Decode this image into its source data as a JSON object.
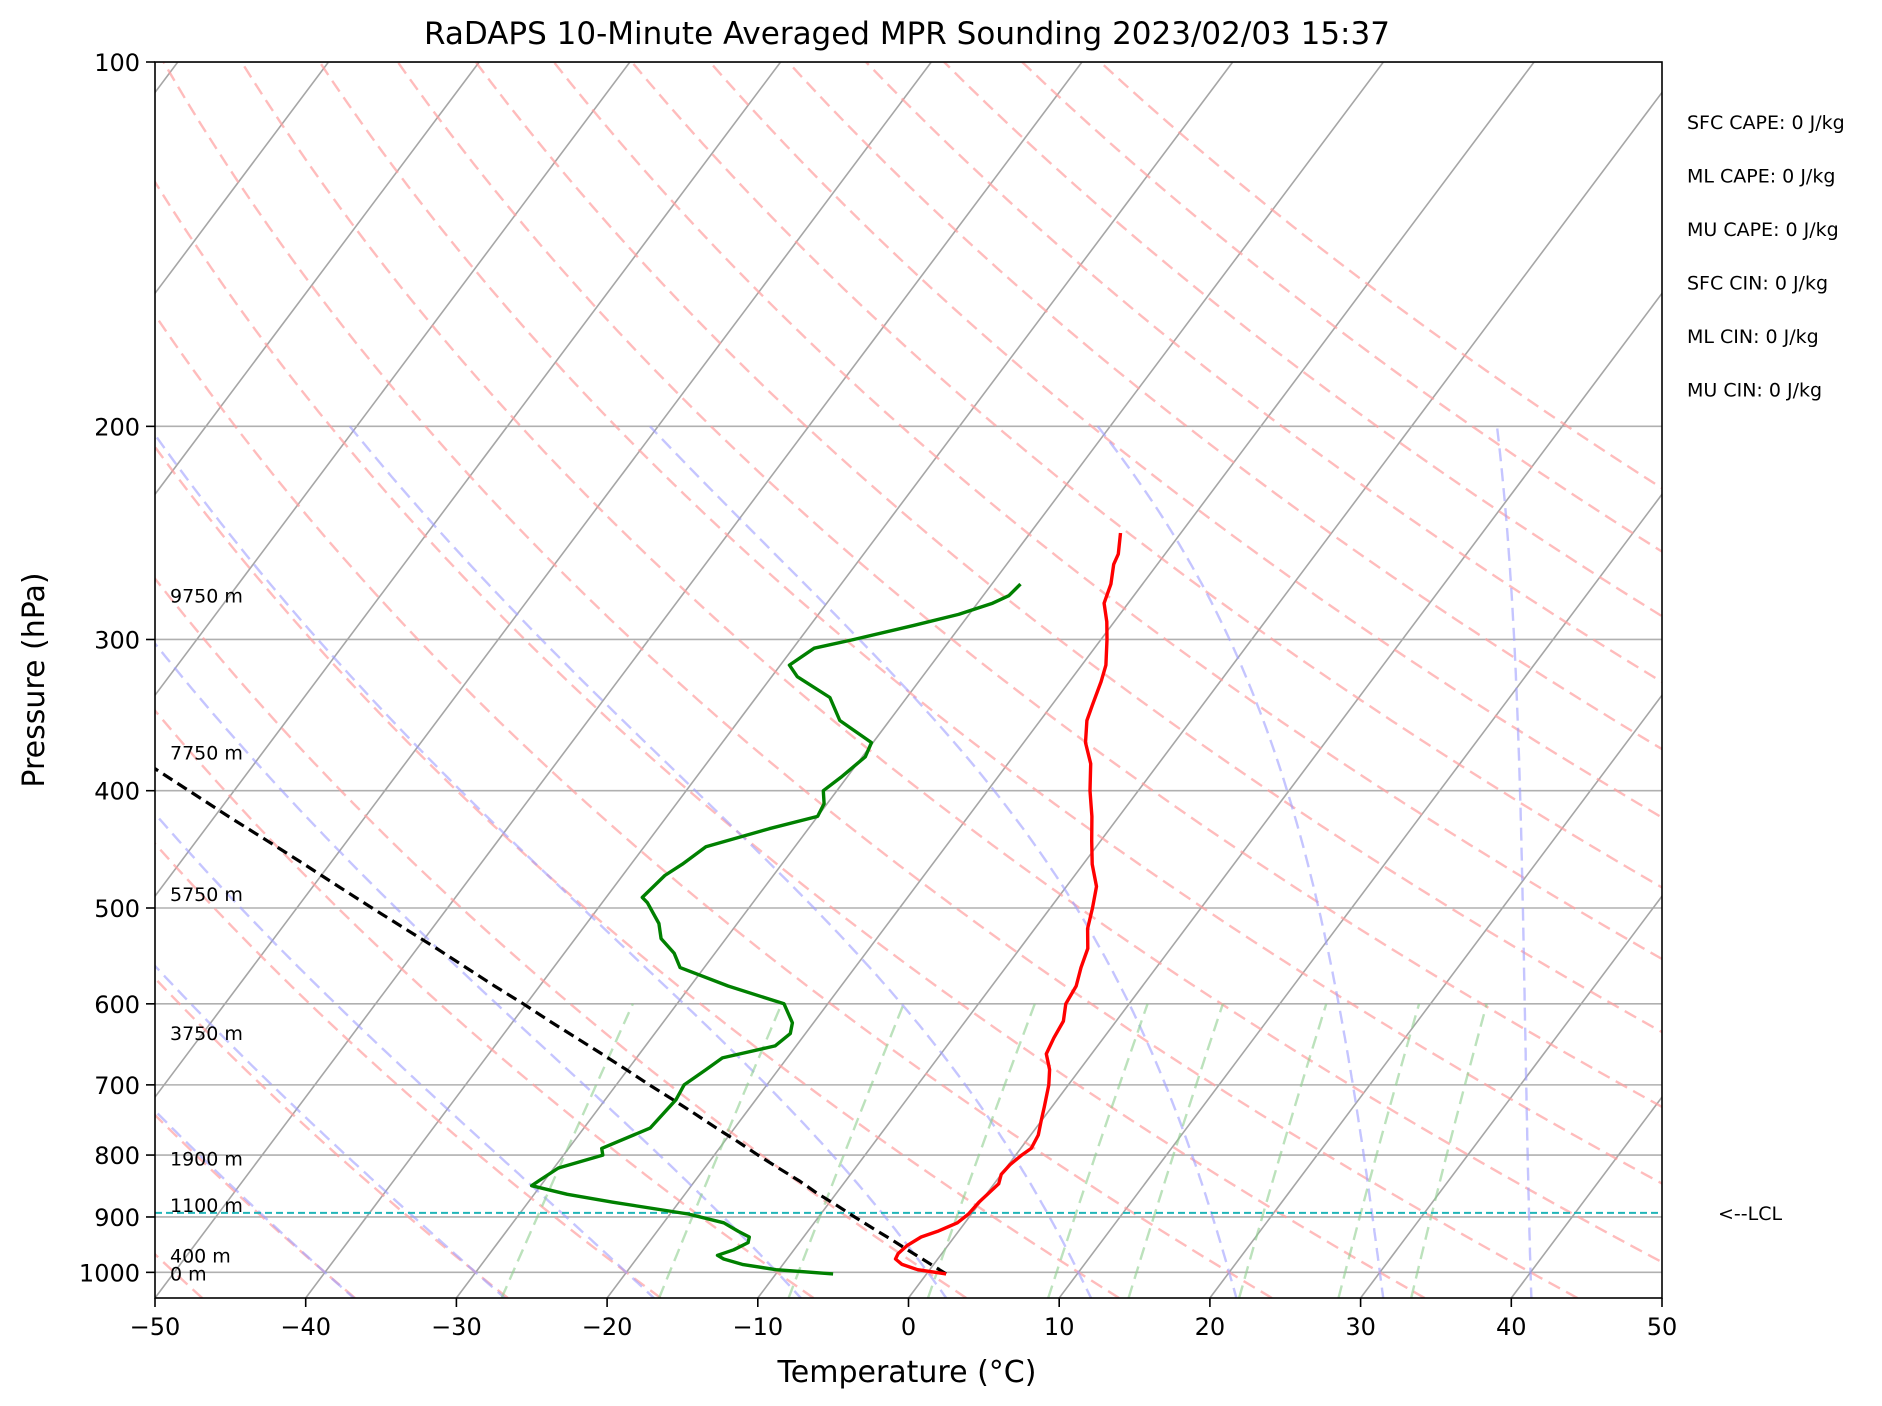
{
  "chart_data": {
    "type": "skew-t",
    "title": "RaDAPS 10-Minute Averaged MPR Sounding 2023/02/03 15:37",
    "xlabel": "Temperature (°C)",
    "ylabel": "Pressure (hPa)",
    "xlim": [
      -50,
      50
    ],
    "ylim": [
      1050,
      100
    ],
    "y_scale": "log",
    "grid": true,
    "x_ticks": [
      -50,
      -40,
      -30,
      -20,
      -10,
      0,
      10,
      20,
      30,
      40,
      50
    ],
    "x_tick_labels": [
      "−50",
      "−40",
      "−30",
      "−20",
      "−10",
      "0",
      "10",
      "20",
      "30",
      "40",
      "50"
    ],
    "y_ticks": [
      100,
      200,
      300,
      400,
      500,
      600,
      700,
      800,
      900,
      1000
    ],
    "y_tick_labels": [
      "100",
      "200",
      "300",
      "400",
      "500",
      "600",
      "700",
      "800",
      "900",
      "1000"
    ],
    "isotherms_c": [
      -160,
      -150,
      -140,
      -130,
      -120,
      -110,
      -100,
      -90,
      -80,
      -70,
      -60,
      -50,
      -40,
      -30,
      -20,
      -10,
      0,
      10,
      20,
      30,
      40,
      50
    ],
    "dry_adiabats_c": [
      -50,
      -40,
      -30,
      -20,
      -10,
      0,
      10,
      20,
      30,
      40,
      50,
      60,
      70,
      80,
      90,
      100,
      110,
      120,
      130,
      140,
      150,
      160
    ],
    "moist_adiabats_c": [
      -40,
      -30,
      -20,
      -10,
      0,
      10,
      20,
      30,
      40,
      50
    ],
    "mixing_ratio_lines_gkg": [
      0.4,
      1,
      2,
      4,
      7,
      10,
      16,
      24,
      32
    ],
    "temperature_profile": {
      "name": "Temperature",
      "color": "#ff0000",
      "points": [
        [
          1003,
          1.3
        ],
        [
          995,
          -0.8
        ],
        [
          985,
          -2.1
        ],
        [
          975,
          -2.8
        ],
        [
          965,
          -2.9
        ],
        [
          950,
          -2.7
        ],
        [
          935,
          -2.2
        ],
        [
          925,
          -1.4
        ],
        [
          910,
          -0.5
        ],
        [
          895,
          -0.2
        ],
        [
          875,
          -0.1
        ],
        [
          860,
          0.1
        ],
        [
          845,
          0.3
        ],
        [
          830,
          0.0
        ],
        [
          815,
          0.1
        ],
        [
          800,
          0.4
        ],
        [
          790,
          0.7
        ],
        [
          770,
          0.5
        ],
        [
          750,
          0.0
        ],
        [
          730,
          -0.5
        ],
        [
          700,
          -1.3
        ],
        [
          680,
          -2.0
        ],
        [
          660,
          -3.0
        ],
        [
          640,
          -3.3
        ],
        [
          620,
          -3.5
        ],
        [
          600,
          -4.2
        ],
        [
          580,
          -4.4
        ],
        [
          560,
          -5.0
        ],
        [
          540,
          -5.5
        ],
        [
          520,
          -6.5
        ],
        [
          500,
          -7.2
        ],
        [
          480,
          -8.0
        ],
        [
          460,
          -9.4
        ],
        [
          440,
          -10.6
        ],
        [
          420,
          -11.8
        ],
        [
          400,
          -13.2
        ],
        [
          380,
          -14.5
        ],
        [
          365,
          -15.9
        ],
        [
          350,
          -16.9
        ],
        [
          340,
          -17.3
        ],
        [
          325,
          -17.9
        ],
        [
          315,
          -18.4
        ],
        [
          300,
          -19.6
        ],
        [
          290,
          -20.5
        ],
        [
          280,
          -21.6
        ],
        [
          270,
          -22.1
        ],
        [
          260,
          -22.9
        ],
        [
          255,
          -23.1
        ],
        [
          245,
          -24.0
        ]
      ]
    },
    "dewpoint_profile": {
      "name": "Dewpoint",
      "color": "#008000",
      "points": [
        [
          1003,
          -6.2
        ],
        [
          995,
          -10.2
        ],
        [
          985,
          -12.7
        ],
        [
          975,
          -14.2
        ],
        [
          968,
          -14.8
        ],
        [
          958,
          -14.0
        ],
        [
          945,
          -13.4
        ],
        [
          935,
          -13.6
        ],
        [
          925,
          -14.6
        ],
        [
          910,
          -16.0
        ],
        [
          895,
          -18.8
        ],
        [
          875,
          -24.4
        ],
        [
          862,
          -27.8
        ],
        [
          848,
          -30.6
        ],
        [
          838,
          -30.3
        ],
        [
          820,
          -29.7
        ],
        [
          800,
          -27.4
        ],
        [
          790,
          -27.8
        ],
        [
          760,
          -25.6
        ],
        [
          720,
          -25.3
        ],
        [
          700,
          -25.5
        ],
        [
          680,
          -24.8
        ],
        [
          665,
          -24.3
        ],
        [
          650,
          -21.4
        ],
        [
          635,
          -21.0
        ],
        [
          622,
          -21.4
        ],
        [
          600,
          -22.9
        ],
        [
          580,
          -27.5
        ],
        [
          560,
          -31.6
        ],
        [
          545,
          -32.7
        ],
        [
          530,
          -34.3
        ],
        [
          515,
          -35.2
        ],
        [
          495,
          -37.0
        ],
        [
          490,
          -37.6
        ],
        [
          470,
          -37.2
        ],
        [
          460,
          -36.6
        ],
        [
          445,
          -35.9
        ],
        [
          430,
          -32.6
        ],
        [
          420,
          -30.0
        ],
        [
          410,
          -30.2
        ],
        [
          400,
          -30.9
        ],
        [
          390,
          -30.4
        ],
        [
          375,
          -29.8
        ],
        [
          365,
          -30.1
        ],
        [
          350,
          -33.3
        ],
        [
          335,
          -35.1
        ],
        [
          322,
          -38.3
        ],
        [
          315,
          -39.4
        ],
        [
          305,
          -38.6
        ],
        [
          300,
          -36.4
        ],
        [
          292,
          -33.1
        ],
        [
          286,
          -30.7
        ],
        [
          280,
          -29.0
        ],
        [
          276,
          -28.3
        ],
        [
          270,
          -28.1
        ]
      ]
    },
    "parcel_profile": {
      "name": "Parcel",
      "color": "#000000",
      "points": [
        [
          1003,
          1.3
        ],
        [
          980,
          -0.6
        ],
        [
          960,
          -2.3
        ],
        [
          940,
          -4.0
        ],
        [
          920,
          -5.8
        ],
        [
          900,
          -7.6
        ],
        [
          880,
          -9.4
        ],
        [
          860,
          -11.3
        ],
        [
          840,
          -13.1
        ],
        [
          820,
          -15.1
        ],
        [
          800,
          -17.1
        ],
        [
          780,
          -19.1
        ],
        [
          760,
          -21.2
        ],
        [
          740,
          -23.3
        ],
        [
          720,
          -25.5
        ],
        [
          700,
          -27.8
        ],
        [
          680,
          -30.1
        ],
        [
          660,
          -32.5
        ],
        [
          640,
          -35.0
        ],
        [
          620,
          -37.6
        ],
        [
          600,
          -40.2
        ],
        [
          580,
          -43.0
        ],
        [
          560,
          -45.8
        ],
        [
          540,
          -48.7
        ],
        [
          520,
          -51.8
        ],
        [
          500,
          -55.0
        ],
        [
          480,
          -58.3
        ],
        [
          460,
          -61.7
        ],
        [
          440,
          -65.3
        ],
        [
          420,
          -69.1
        ],
        [
          400,
          -73.0
        ],
        [
          380,
          -77.1
        ],
        [
          360,
          -81.4
        ],
        [
          340,
          -86.0
        ],
        [
          320,
          -90.8
        ],
        [
          305,
          -94.6
        ]
      ]
    },
    "lcl": {
      "pressure_hpa": 893,
      "label": "<--LCL",
      "color": "#21b5b8"
    },
    "height_labels": [
      {
        "text": "9750 m",
        "pressure_hpa": 276
      },
      {
        "text": "7750 m",
        "pressure_hpa": 372
      },
      {
        "text": "5750 m",
        "pressure_hpa": 487
      },
      {
        "text": "3750 m",
        "pressure_hpa": 634
      },
      {
        "text": "1900 m",
        "pressure_hpa": 805
      },
      {
        "text": "1100 m",
        "pressure_hpa": 880
      },
      {
        "text": "400 m",
        "pressure_hpa": 968
      },
      {
        "text": "0 m",
        "pressure_hpa": 1002
      }
    ],
    "indices": [
      "SFC CAPE: 0 J/kg",
      "ML CAPE: 0 J/kg",
      "MU CAPE: 0 J/kg",
      "SFC CIN: 0 J/kg",
      "ML CIN: 0 J/kg",
      "MU CIN: 0 J/kg"
    ]
  }
}
